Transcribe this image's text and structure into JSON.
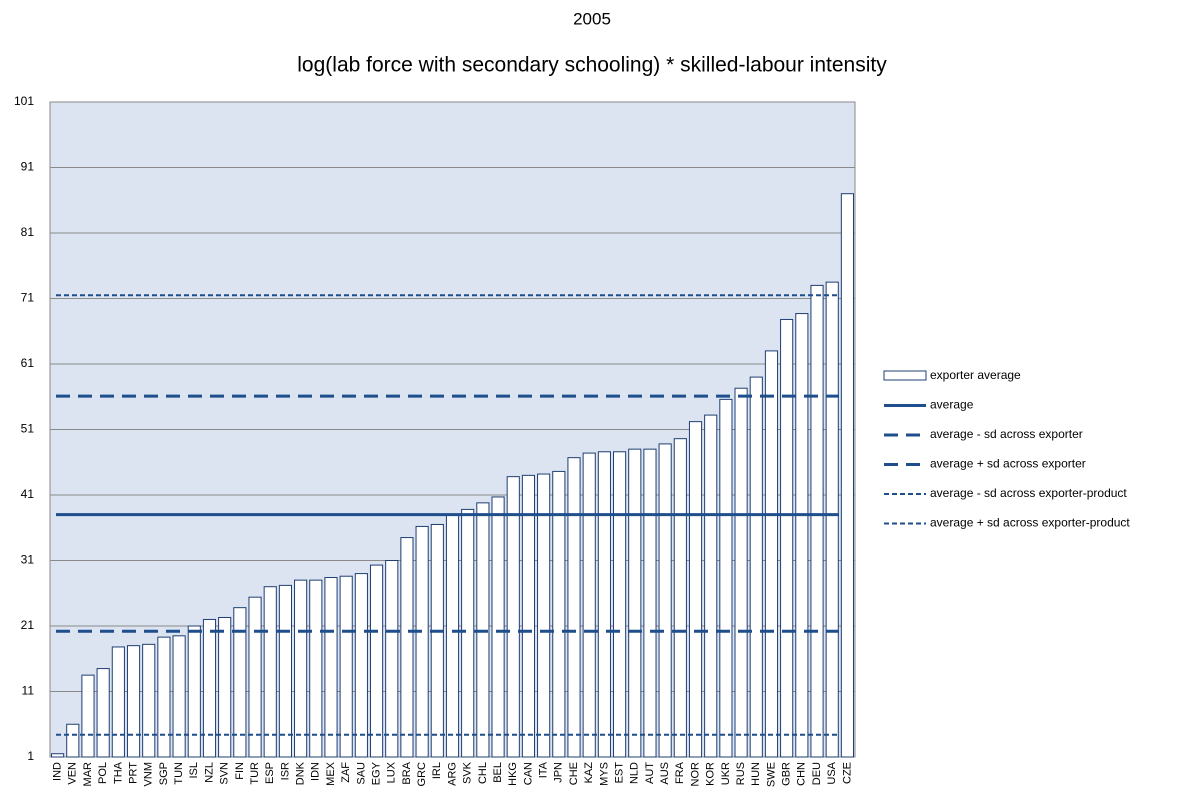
{
  "chart_data": {
    "type": "bar",
    "title": "2005",
    "subtitle": "log(lab force with secondary schooling) * skilled-labour intensity",
    "categories": [
      "IND",
      "VEN",
      "MAR",
      "POL",
      "THA",
      "PRT",
      "VNM",
      "SGP",
      "TUN",
      "ISL",
      "NZL",
      "SVN",
      "FIN",
      "TUR",
      "ESP",
      "ISR",
      "DNK",
      "IDN",
      "MEX",
      "ZAF",
      "SAU",
      "EGY",
      "LUX",
      "BRA",
      "GRC",
      "IRL",
      "ARG",
      "SVK",
      "CHL",
      "BEL",
      "HKG",
      "CAN",
      "ITA",
      "JPN",
      "CHE",
      "KAZ",
      "MYS",
      "EST",
      "NLD",
      "AUT",
      "AUS",
      "FRA",
      "NOR",
      "KOR",
      "UKR",
      "RUS",
      "HUN",
      "SWE",
      "GBR",
      "CHN",
      "DEU",
      "USA",
      "CZE"
    ],
    "series": [
      {
        "name": "exporter average",
        "color": "#1f3e73",
        "values": [
          1.5,
          6,
          13.5,
          14.5,
          17.8,
          18,
          18.2,
          19.3,
          19.5,
          21,
          22,
          22.3,
          23.8,
          25.4,
          27,
          27.2,
          28,
          28,
          28.4,
          28.6,
          29,
          30.3,
          31,
          34.5,
          36.2,
          36.5,
          38,
          38.8,
          39.8,
          40.7,
          43.8,
          44,
          44.2,
          44.6,
          46.7,
          47.4,
          47.6,
          47.6,
          48,
          48,
          48.8,
          49.6,
          52.2,
          53.2,
          55.6,
          57.3,
          59,
          63,
          67.8,
          68.7,
          73,
          73.5,
          87
        ]
      }
    ],
    "lines": [
      {
        "name": "average",
        "value": 38,
        "style": "solid",
        "color": "#1f4e8c"
      },
      {
        "name": "average - sd across exporter",
        "value": 20.2,
        "style": "dashed",
        "color": "#1f4e8c"
      },
      {
        "name": "average + sd across exporter",
        "value": 56.1,
        "style": "dashed",
        "color": "#1f4e8c"
      },
      {
        "name": "average - sd across exporter-product",
        "value": 4.4,
        "style": "dotted",
        "color": "#1f4e8c"
      },
      {
        "name": "average + sd across exporter-product",
        "value": 71.5,
        "style": "dotted",
        "color": "#1f4e8c"
      }
    ],
    "ylim": [
      1,
      101
    ],
    "yticks": [
      1,
      11,
      21,
      31,
      41,
      51,
      61,
      71,
      81,
      91,
      101
    ],
    "grid": true,
    "legend": "right"
  }
}
